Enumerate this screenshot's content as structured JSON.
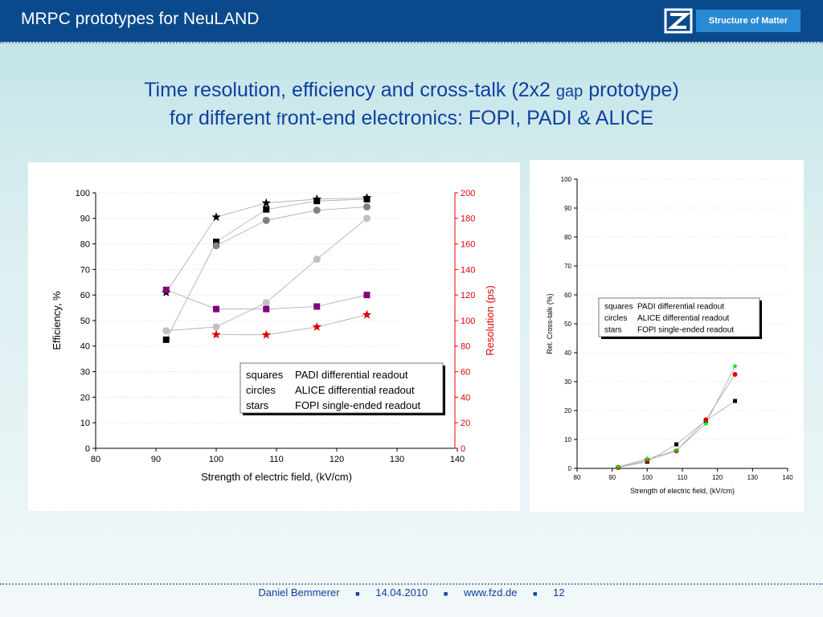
{
  "header": {
    "title": "MRPC prototypes for NeuLAND",
    "logo_text": "Structure of Matter"
  },
  "slide_title": {
    "line1_a": "Time resolution, efficiency and cross-talk (2x2 ",
    "line1_small": "gap",
    "line1_b": " prototype)",
    "line2_a": "for different ",
    "line2_small": "f",
    "line2_b": "ront-end electronics: FOPI, PADI & ALICE"
  },
  "footer": {
    "author": "Daniel Bemmerer",
    "sep": "■",
    "date": "14.04.2010",
    "url": "www.fzd.de",
    "page": "12"
  },
  "chart_data": [
    {
      "type": "scatter",
      "xlabel": "Strength of electric field, (kV/cm)",
      "ylabel": "Efficiency, %",
      "y2label": "Resolution (ps)",
      "xlim": [
        80,
        140
      ],
      "ylim": [
        0,
        100
      ],
      "y2lim": [
        0,
        200
      ],
      "xticks": [
        80,
        90,
        100,
        110,
        120,
        130,
        140
      ],
      "yticks": [
        0,
        10,
        20,
        30,
        40,
        50,
        60,
        70,
        80,
        90,
        100
      ],
      "y2ticks": [
        0,
        20,
        40,
        60,
        80,
        100,
        120,
        140,
        160,
        180,
        200
      ],
      "colors": {
        "efficiency": "#000000",
        "alice": "#808080",
        "alice_res": "#c0c0c0",
        "padi_res": "#800080",
        "fopi_res": "#e00000",
        "axis2": "#e00000"
      },
      "legend": {
        "rows": [
          [
            "squares",
            "PADI differential readout"
          ],
          [
            "circles",
            "ALICE differential readout"
          ],
          [
            "stars",
            "FOPI single-ended readout"
          ]
        ]
      },
      "series": [
        {
          "marker": "square",
          "axis": "left",
          "color": "#000000",
          "x": [
            91.7,
            100,
            108.3,
            116.7,
            125
          ],
          "y": [
            42.5,
            80.8,
            93.5,
            96.8,
            97.5
          ]
        },
        {
          "marker": "circle",
          "axis": "left",
          "color": "#808080",
          "x": [
            100,
            108.3,
            116.7,
            125
          ],
          "y": [
            79.3,
            89.2,
            93.2,
            94.5
          ]
        },
        {
          "marker": "star",
          "axis": "left",
          "color": "#000000",
          "x": [
            91.7,
            100,
            108.3,
            116.7,
            125
          ],
          "y": [
            61,
            90.5,
            96,
            97.5,
            98
          ]
        },
        {
          "marker": "circle",
          "axis": "right",
          "color": "#c0c0c0",
          "x": [
            91.7,
            100,
            108.3,
            116.7,
            125
          ],
          "y": [
            92,
            95,
            114,
            148,
            180
          ]
        },
        {
          "marker": "square",
          "axis": "right",
          "color": "#800080",
          "x": [
            91.7,
            100,
            108.3,
            116.7,
            125
          ],
          "y": [
            124,
            109,
            109,
            111,
            120
          ]
        },
        {
          "marker": "star",
          "axis": "right",
          "color": "#e00000",
          "x": [
            100,
            108.3,
            116.7,
            125
          ],
          "y": [
            89,
            88.8,
            95,
            104.5
          ]
        }
      ]
    },
    {
      "type": "scatter",
      "xlabel": "Strength of electric field, (kV/cm)",
      "ylabel": "Rel. Cross-talk (%)",
      "xlim": [
        80,
        140
      ],
      "ylim": [
        0,
        100
      ],
      "xticks": [
        80,
        90,
        100,
        110,
        120,
        130,
        140
      ],
      "yticks": [
        0,
        10,
        20,
        30,
        40,
        50,
        60,
        70,
        80,
        90,
        100
      ],
      "legend": {
        "rows": [
          [
            "squares",
            "PADI differential readout"
          ],
          [
            "circles",
            "ALICE differential readout"
          ],
          [
            "stars",
            "FOPI single-ended readout"
          ]
        ]
      },
      "series": [
        {
          "marker": "square",
          "color": "#000000",
          "x": [
            91.7,
            100,
            108.3,
            116.7,
            125
          ],
          "y": [
            0.3,
            2.3,
            8.3,
            16.5,
            23.3
          ]
        },
        {
          "marker": "circle",
          "color": "#e00000",
          "x": [
            91.7,
            100,
            108.3,
            116.7,
            125
          ],
          "y": [
            0.3,
            2.8,
            6.0,
            16.8,
            32.5
          ]
        },
        {
          "marker": "star",
          "color": "#00dd00",
          "x": [
            91.7,
            100,
            108.3,
            116.7,
            125
          ],
          "y": [
            0.5,
            3.3,
            6.2,
            15.5,
            35.3
          ]
        }
      ]
    }
  ]
}
